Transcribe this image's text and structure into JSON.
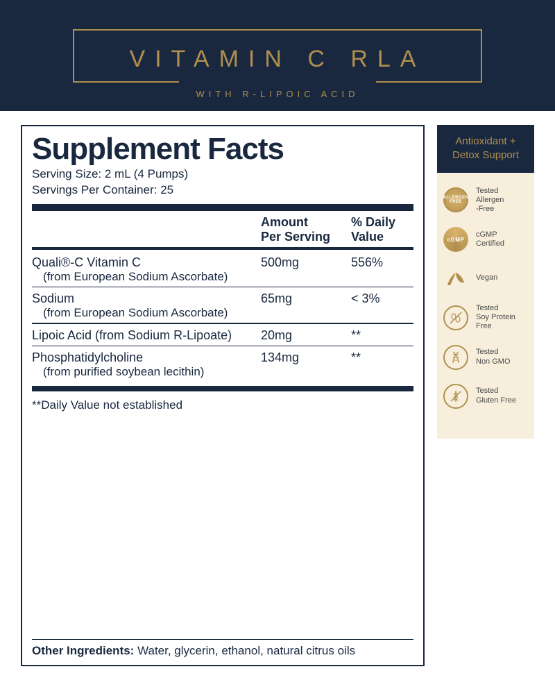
{
  "colors": {
    "navy": "#19283f",
    "gold": "#b08f4f",
    "cream": "#f7efdc",
    "white": "#ffffff",
    "badge_text": "#4a4a4a"
  },
  "header": {
    "title": "VITAMIN C RLA",
    "subtitle": "WITH R-LIPOIC ACID"
  },
  "facts": {
    "heading": "Supplement Facts",
    "serving_size": "Serving Size: 2 mL (4 Pumps)",
    "servings_per": "Servings Per Container: 25",
    "columns": {
      "amount": "Amount Per Serving",
      "dv": "% Daily Value"
    },
    "rows": [
      {
        "name": "Quali®-C Vitamin C",
        "sub": "(from European Sodium Ascorbate)",
        "amount": "500mg",
        "dv": "556%"
      },
      {
        "name": "Sodium",
        "sub": "(from European Sodium Ascorbate)",
        "amount": "65mg",
        "dv": "< 3%"
      },
      {
        "name": "Lipoic Acid (from Sodium R-Lipoate)",
        "sub": "",
        "amount": "20mg",
        "dv": "**"
      },
      {
        "name": "Phosphatidylcholine",
        "sub": "(from purified soybean lecithin)",
        "amount": "134mg",
        "dv": "**"
      }
    ],
    "footnote": "**Daily Value not established",
    "other_label": "Other Ingredients:",
    "other_text": " Water, glycerin, ethanol, natural citrus oils"
  },
  "sidebar": {
    "heading_l1": "Antioxidant +",
    "heading_l2": "Detox Support",
    "badges": [
      {
        "icon": "allergen-free-icon",
        "label_l1": "Tested",
        "label_l2": "Allergen",
        "label_l3": "-Free"
      },
      {
        "icon": "cgmp-icon",
        "label_l1": "cGMP",
        "label_l2": "Certified",
        "label_l3": ""
      },
      {
        "icon": "vegan-icon",
        "label_l1": "Vegan",
        "label_l2": "",
        "label_l3": ""
      },
      {
        "icon": "soy-free-icon",
        "label_l1": "Tested",
        "label_l2": "Soy Protein",
        "label_l3": "Free"
      },
      {
        "icon": "non-gmo-icon",
        "label_l1": "Tested",
        "label_l2": "Non GMO",
        "label_l3": ""
      },
      {
        "icon": "gluten-free-icon",
        "label_l1": "Tested",
        "label_l2": "Gluten Free",
        "label_l3": ""
      }
    ]
  }
}
